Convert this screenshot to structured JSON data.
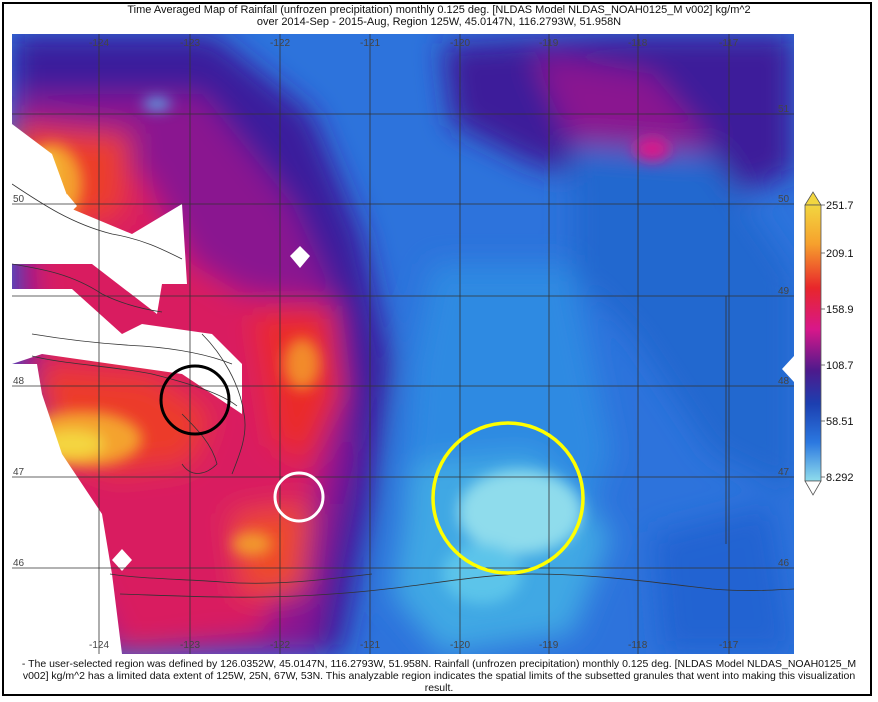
{
  "title": {
    "line1": "Time Averaged Map of Rainfall (unfrozen precipitation) monthly 0.125 deg. [NLDAS Model NLDAS_NOAH0125_M v002] kg/m^2",
    "line2": "over 2014-Sep - 2015-Aug, Region 125W, 45.0147N, 116.2793W, 51.958N"
  },
  "axes": {
    "lon_top": [
      "-124",
      "-123",
      "-122",
      "-121",
      "-120",
      "-119",
      "-118",
      "-117"
    ],
    "lon_bottom": [
      "-124",
      "-123",
      "-122",
      "-121",
      "-120",
      "-119",
      "-118",
      "-117"
    ],
    "lat_right": [
      "51",
      "50",
      "49",
      "48",
      "47",
      "46"
    ],
    "lat_left": [
      "50",
      "48",
      "47",
      "46"
    ]
  },
  "legend": {
    "labels": [
      "251.7",
      "209.1",
      "158.9",
      "108.7",
      "58.51",
      "8.292"
    ],
    "colors": [
      "#f2d640",
      "#f6a12d",
      "#e8262b",
      "#d8178a",
      "#4d1a8c",
      "#1c3fb0",
      "#2b78e0",
      "#8fdcec"
    ]
  },
  "annotations": [
    {
      "color": "#000000"
    },
    {
      "color": "#ffffff"
    },
    {
      "color": "#ffff00"
    }
  ],
  "footer": "- The user-selected region was defined by 126.0352W, 45.0147N, 116.2793W, 51.958N. Rainfall (unfrozen precipitation) monthly 0.125 deg. [NLDAS Model NLDAS_NOAH0125_M v002] kg/m^2 has a limited data extent of 125W, 25N, 67W, 53N. This analyzable region indicates the spatial limits of the subsetted granules that went into making this visualization result."
}
